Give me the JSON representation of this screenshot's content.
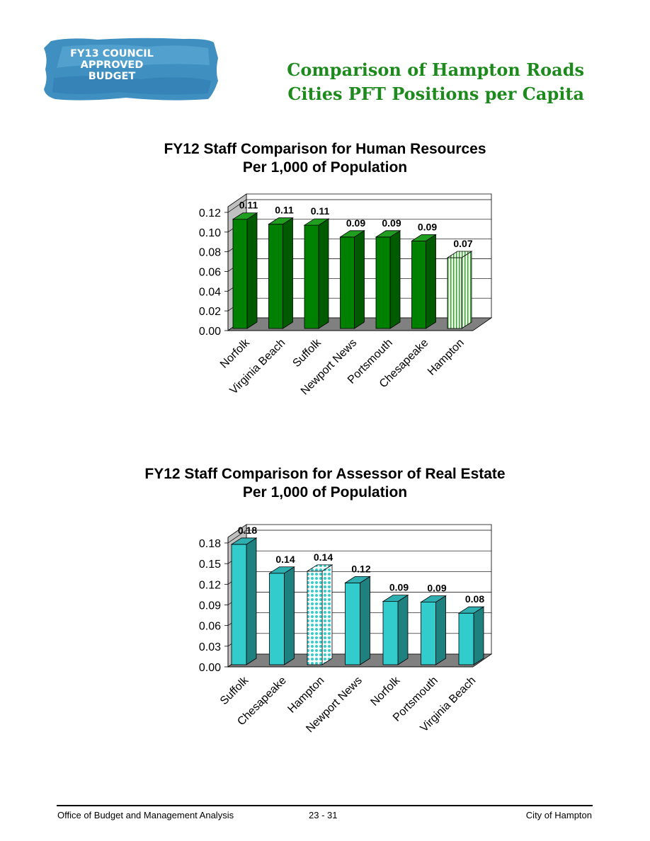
{
  "header": {
    "logo_lines": [
      "FY13 COUNCIL",
      "APPROVED",
      "BUDGET"
    ],
    "title_line1": "Comparison of Hampton Roads",
    "title_line2": "Cities PFT Positions per Capita"
  },
  "chart_data": [
    {
      "type": "bar",
      "title": "FY12 Staff Comparison for Human Resources",
      "subtitle": "Per 1,000 of Population",
      "categories": [
        "Norfolk",
        "Virginia Beach",
        "Suffolk",
        "Newport News",
        "Portsmouth",
        "Chesapeake",
        "Hampton"
      ],
      "values": [
        0.113,
        0.108,
        0.107,
        0.095,
        0.095,
        0.091,
        0.074
      ],
      "value_labels": [
        "0.11",
        "0.11",
        "0.11",
        "0.09",
        "0.09",
        "0.09",
        "0.07"
      ],
      "ylim": [
        0,
        0.12
      ],
      "yticks": [
        "0.00",
        "0.02",
        "0.04",
        "0.06",
        "0.08",
        "0.10",
        "0.12"
      ],
      "highlight": "Hampton",
      "colors": {
        "bar": "#008000",
        "bar_side": "#005a00",
        "bar_top": "#1f9e1f",
        "highlight_front": "#e8f5e0",
        "highlight_stripe": "#3a9a3a",
        "floor": "#808080",
        "wall": "#c0c0c0"
      },
      "grid": true
    },
    {
      "type": "bar",
      "title": "FY12 Staff Comparison for Assessor of Real Estate",
      "subtitle": "Per 1,000 of Population",
      "categories": [
        "Suffolk",
        "Chesapeake",
        "Hampton",
        "Newport News",
        "Norfolk",
        "Portsmouth",
        "Virginia Beach"
      ],
      "values": [
        0.178,
        0.136,
        0.139,
        0.122,
        0.095,
        0.094,
        0.078
      ],
      "value_labels": [
        "0.18",
        "0.14",
        "0.14",
        "0.12",
        "0.09",
        "0.09",
        "0.08"
      ],
      "ylim": [
        0,
        0.18
      ],
      "yticks": [
        "0.00",
        "0.03",
        "0.06",
        "0.09",
        "0.12",
        "0.15",
        "0.18"
      ],
      "highlight": "Hampton",
      "colors": {
        "bar": "#33cccc",
        "bar_side": "#1f8080",
        "bar_top": "#2eaeae",
        "highlight_front": "#ffffff",
        "highlight_stripe": "#33cccc",
        "floor": "#808080",
        "wall": "#c0c0c0"
      },
      "grid": true
    }
  ],
  "footer": {
    "left": "Office of Budget and Management Analysis",
    "center": "23 - 31",
    "right": "City of Hampton"
  }
}
